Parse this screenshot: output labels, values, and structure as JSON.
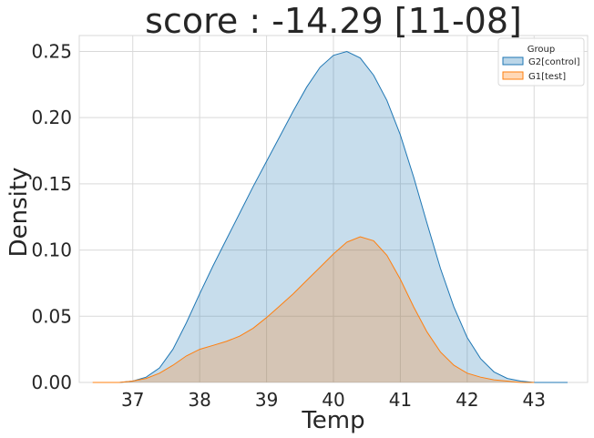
{
  "chart_data": {
    "type": "area",
    "title": "score : -14.29 [11-08]",
    "xlabel": "Temp",
    "ylabel": "Density",
    "xlim": [
      36.2,
      43.8
    ],
    "ylim": [
      0,
      0.262
    ],
    "xticks": [
      37,
      38,
      39,
      40,
      41,
      42,
      43
    ],
    "yticks": [
      0.0,
      0.05,
      0.1,
      0.15,
      0.2,
      0.25
    ],
    "ytick_labels": [
      "0.00",
      "0.05",
      "0.10",
      "0.15",
      "0.20",
      "0.25"
    ],
    "grid": true,
    "legend": {
      "title": "Group",
      "position": "top-right"
    },
    "series": [
      {
        "name": "G2[control]",
        "color": "#1f77b4",
        "points": [
          [
            36.8,
            0.0
          ],
          [
            37.0,
            0.001
          ],
          [
            37.2,
            0.004
          ],
          [
            37.4,
            0.011
          ],
          [
            37.6,
            0.025
          ],
          [
            37.8,
            0.045
          ],
          [
            38.0,
            0.067
          ],
          [
            38.2,
            0.088
          ],
          [
            38.4,
            0.108
          ],
          [
            38.6,
            0.128
          ],
          [
            38.8,
            0.148
          ],
          [
            39.0,
            0.167
          ],
          [
            39.2,
            0.186
          ],
          [
            39.4,
            0.205
          ],
          [
            39.6,
            0.223
          ],
          [
            39.8,
            0.238
          ],
          [
            40.0,
            0.247
          ],
          [
            40.2,
            0.25
          ],
          [
            40.4,
            0.245
          ],
          [
            40.6,
            0.232
          ],
          [
            40.8,
            0.213
          ],
          [
            41.0,
            0.187
          ],
          [
            41.2,
            0.155
          ],
          [
            41.4,
            0.12
          ],
          [
            41.6,
            0.086
          ],
          [
            41.8,
            0.057
          ],
          [
            42.0,
            0.034
          ],
          [
            42.2,
            0.018
          ],
          [
            42.4,
            0.008
          ],
          [
            42.6,
            0.003
          ],
          [
            42.8,
            0.001
          ],
          [
            43.0,
            0.0
          ],
          [
            43.5,
            0.0
          ]
        ]
      },
      {
        "name": "G1[test]",
        "color": "#ff7f0e",
        "points": [
          [
            36.4,
            0.0
          ],
          [
            36.8,
            0.0
          ],
          [
            37.0,
            0.001
          ],
          [
            37.2,
            0.003
          ],
          [
            37.4,
            0.007
          ],
          [
            37.6,
            0.013
          ],
          [
            37.8,
            0.02
          ],
          [
            38.0,
            0.025
          ],
          [
            38.2,
            0.028
          ],
          [
            38.4,
            0.031
          ],
          [
            38.6,
            0.035
          ],
          [
            38.8,
            0.041
          ],
          [
            39.0,
            0.049
          ],
          [
            39.2,
            0.058
          ],
          [
            39.4,
            0.067
          ],
          [
            39.6,
            0.077
          ],
          [
            39.8,
            0.087
          ],
          [
            40.0,
            0.097
          ],
          [
            40.2,
            0.106
          ],
          [
            40.4,
            0.11
          ],
          [
            40.6,
            0.107
          ],
          [
            40.8,
            0.096
          ],
          [
            41.0,
            0.078
          ],
          [
            41.2,
            0.057
          ],
          [
            41.4,
            0.038
          ],
          [
            41.6,
            0.023
          ],
          [
            41.8,
            0.013
          ],
          [
            42.0,
            0.007
          ],
          [
            42.2,
            0.004
          ],
          [
            42.4,
            0.002
          ],
          [
            42.6,
            0.001
          ],
          [
            42.8,
            0.0
          ],
          [
            43.0,
            0.0
          ]
        ]
      }
    ]
  }
}
